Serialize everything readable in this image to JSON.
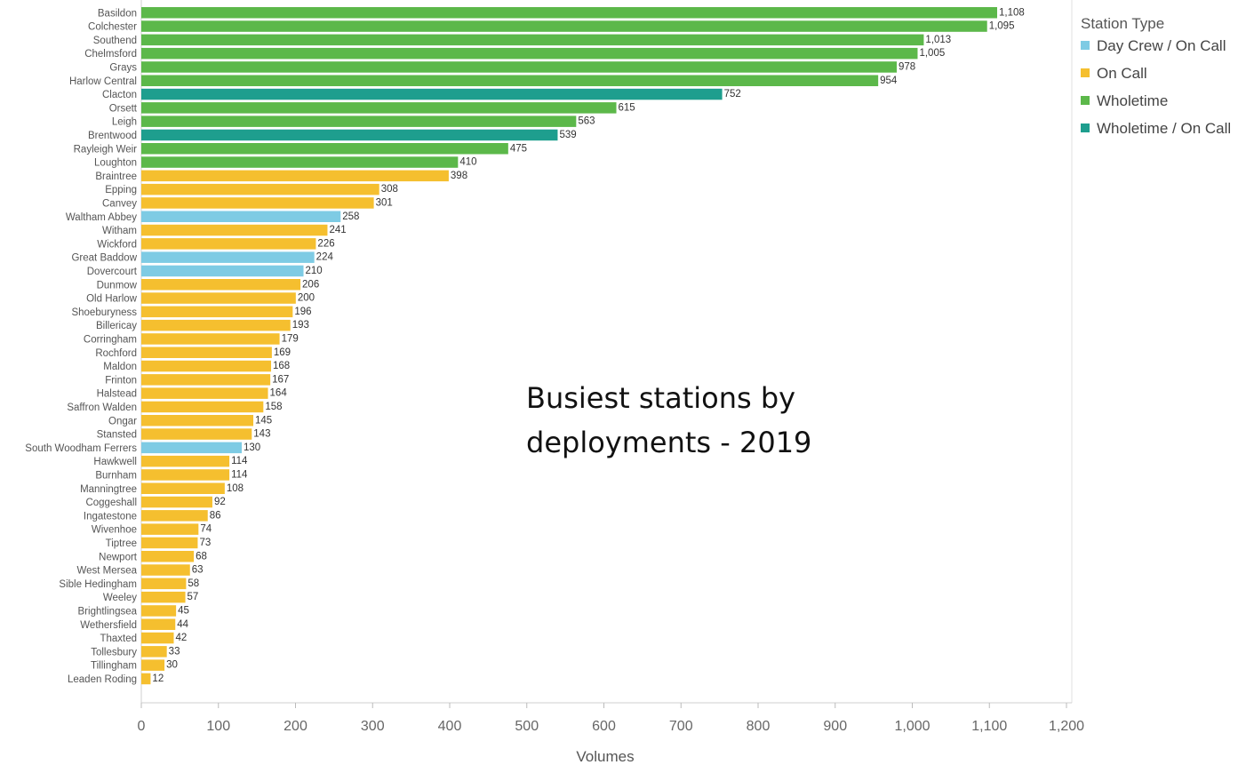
{
  "chart_data": {
    "type": "bar",
    "orientation": "horizontal",
    "title": "Busiest stations by deployments - 2019",
    "title_lines": [
      "Busiest stations by",
      "deployments -  2019"
    ],
    "xlabel": "Volumes",
    "ylabel": "",
    "xlim": [
      0,
      1200
    ],
    "x_ticks": [
      0,
      100,
      200,
      300,
      400,
      500,
      600,
      700,
      800,
      900,
      1000,
      1100,
      1200
    ],
    "x_tick_labels": [
      "0",
      "100",
      "200",
      "300",
      "400",
      "500",
      "600",
      "700",
      "800",
      "900",
      "1,000",
      "1,100",
      "1,200"
    ],
    "grid": false,
    "legend": {
      "title": "Station Type",
      "position": "top-right",
      "entries": [
        {
          "name": "Day Crew / On Call",
          "color": "#7ecbe4"
        },
        {
          "name": "On Call",
          "color": "#f5bf2f"
        },
        {
          "name": "Wholetime",
          "color": "#5cb84a"
        },
        {
          "name": "Wholetime / On Call",
          "color": "#1e9e8e"
        }
      ]
    },
    "bars": [
      {
        "station": "Basildon",
        "value": 1108,
        "label": "1,108",
        "type": "Wholetime"
      },
      {
        "station": "Colchester",
        "value": 1095,
        "label": "1,095",
        "type": "Wholetime"
      },
      {
        "station": "Southend",
        "value": 1013,
        "label": "1,013",
        "type": "Wholetime"
      },
      {
        "station": "Chelmsford",
        "value": 1005,
        "label": "1,005",
        "type": "Wholetime"
      },
      {
        "station": "Grays",
        "value": 978,
        "label": "978",
        "type": "Wholetime"
      },
      {
        "station": "Harlow Central",
        "value": 954,
        "label": "954",
        "type": "Wholetime"
      },
      {
        "station": "Clacton",
        "value": 752,
        "label": "752",
        "type": "Wholetime / On Call"
      },
      {
        "station": "Orsett",
        "value": 615,
        "label": "615",
        "type": "Wholetime"
      },
      {
        "station": "Leigh",
        "value": 563,
        "label": "563",
        "type": "Wholetime"
      },
      {
        "station": "Brentwood",
        "value": 539,
        "label": "539",
        "type": "Wholetime / On Call"
      },
      {
        "station": "Rayleigh Weir",
        "value": 475,
        "label": "475",
        "type": "Wholetime"
      },
      {
        "station": "Loughton",
        "value": 410,
        "label": "410",
        "type": "Wholetime"
      },
      {
        "station": "Braintree",
        "value": 398,
        "label": "398",
        "type": "On Call"
      },
      {
        "station": "Epping",
        "value": 308,
        "label": "308",
        "type": "On Call"
      },
      {
        "station": "Canvey",
        "value": 301,
        "label": "301",
        "type": "On Call"
      },
      {
        "station": "Waltham Abbey",
        "value": 258,
        "label": "258",
        "type": "Day Crew / On Call"
      },
      {
        "station": "Witham",
        "value": 241,
        "label": "241",
        "type": "On Call"
      },
      {
        "station": "Wickford",
        "value": 226,
        "label": "226",
        "type": "On Call"
      },
      {
        "station": "Great Baddow",
        "value": 224,
        "label": "224",
        "type": "Day Crew / On Call"
      },
      {
        "station": "Dovercourt",
        "value": 210,
        "label": "210",
        "type": "Day Crew / On Call"
      },
      {
        "station": "Dunmow",
        "value": 206,
        "label": "206",
        "type": "On Call"
      },
      {
        "station": "Old Harlow",
        "value": 200,
        "label": "200",
        "type": "On Call"
      },
      {
        "station": "Shoeburyness",
        "value": 196,
        "label": "196",
        "type": "On Call"
      },
      {
        "station": "Billericay",
        "value": 193,
        "label": "193",
        "type": "On Call"
      },
      {
        "station": "Corringham",
        "value": 179,
        "label": "179",
        "type": "On Call"
      },
      {
        "station": "Rochford",
        "value": 169,
        "label": "169",
        "type": "On Call"
      },
      {
        "station": "Maldon",
        "value": 168,
        "label": "168",
        "type": "On Call"
      },
      {
        "station": "Frinton",
        "value": 167,
        "label": "167",
        "type": "On Call"
      },
      {
        "station": "Halstead",
        "value": 164,
        "label": "164",
        "type": "On Call"
      },
      {
        "station": "Saffron Walden",
        "value": 158,
        "label": "158",
        "type": "On Call"
      },
      {
        "station": "Ongar",
        "value": 145,
        "label": "145",
        "type": "On Call"
      },
      {
        "station": "Stansted",
        "value": 143,
        "label": "143",
        "type": "On Call"
      },
      {
        "station": "South Woodham Ferrers",
        "value": 130,
        "label": "130",
        "type": "Day Crew / On Call"
      },
      {
        "station": "Hawkwell",
        "value": 114,
        "label": "114",
        "type": "On Call"
      },
      {
        "station": "Burnham",
        "value": 114,
        "label": "114",
        "type": "On Call"
      },
      {
        "station": "Manningtree",
        "value": 108,
        "label": "108",
        "type": "On Call"
      },
      {
        "station": "Coggeshall",
        "value": 92,
        "label": "92",
        "type": "On Call"
      },
      {
        "station": "Ingatestone",
        "value": 86,
        "label": "86",
        "type": "On Call"
      },
      {
        "station": "Wivenhoe",
        "value": 74,
        "label": "74",
        "type": "On Call"
      },
      {
        "station": "Tiptree",
        "value": 73,
        "label": "73",
        "type": "On Call"
      },
      {
        "station": "Newport",
        "value": 68,
        "label": "68",
        "type": "On Call"
      },
      {
        "station": "West Mersea",
        "value": 63,
        "label": "63",
        "type": "On Call"
      },
      {
        "station": "Sible Hedingham",
        "value": 58,
        "label": "58",
        "type": "On Call"
      },
      {
        "station": "Weeley",
        "value": 57,
        "label": "57",
        "type": "On Call"
      },
      {
        "station": "Brightlingsea",
        "value": 45,
        "label": "45",
        "type": "On Call"
      },
      {
        "station": "Wethersfield",
        "value": 44,
        "label": "44",
        "type": "On Call"
      },
      {
        "station": "Thaxted",
        "value": 42,
        "label": "42",
        "type": "On Call"
      },
      {
        "station": "Tollesbury",
        "value": 33,
        "label": "33",
        "type": "On Call"
      },
      {
        "station": "Tillingham",
        "value": 30,
        "label": "30",
        "type": "On Call"
      },
      {
        "station": "Leaden Roding",
        "value": 12,
        "label": "12",
        "type": "On Call"
      }
    ]
  }
}
